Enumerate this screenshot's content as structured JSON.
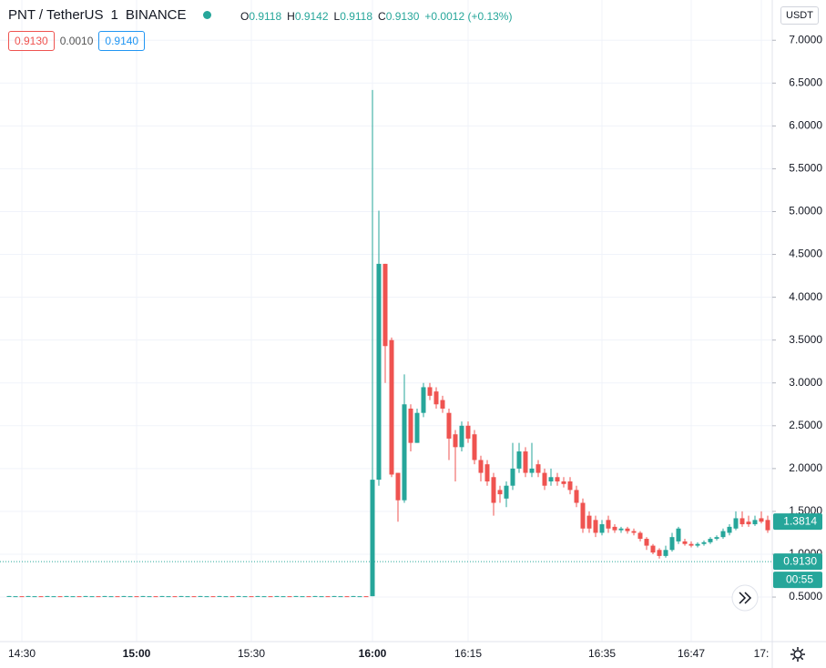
{
  "header": {
    "symbol": "PNT / TetherUS",
    "interval": "1",
    "exchange": "BINANCE",
    "ohlc": [
      {
        "key": "O",
        "text": "0.9118"
      },
      {
        "key": "H",
        "text": "0.9142"
      },
      {
        "key": "L",
        "text": "0.9118"
      },
      {
        "key": "C",
        "text": "0.9130"
      }
    ],
    "change": "+0.0012 (+0.13%)",
    "sell": "0.9130",
    "spread": "0.0010",
    "buy": "0.9140",
    "currency": "USDT"
  },
  "chart_data": {
    "type": "candlestick",
    "up_color": "#26a69a",
    "down_color": "#ef5350",
    "grid": true,
    "ylim": [
      -0.02,
      7.47
    ],
    "yticks": [
      {
        "value": 0.5,
        "label": "0.5000"
      },
      {
        "value": 1,
        "label": "1.0000"
      },
      {
        "value": 1.5,
        "label": "1.5000"
      },
      {
        "value": 2,
        "label": "2.0000"
      },
      {
        "value": 2.5,
        "label": "2.5000"
      },
      {
        "value": 3,
        "label": "3.0000"
      },
      {
        "value": 3.5,
        "label": "3.5000"
      },
      {
        "value": 4,
        "label": "4.0000"
      },
      {
        "value": 4.5,
        "label": "4.5000"
      },
      {
        "value": 5,
        "label": "5.0000"
      },
      {
        "value": 5.5,
        "label": "5.5000"
      },
      {
        "value": 6,
        "label": "6.0000"
      },
      {
        "value": 6.5,
        "label": "6.5000"
      },
      {
        "value": 7,
        "label": "7.0000"
      }
    ],
    "categories": [
      null,
      null,
      "14:30",
      null,
      null,
      null,
      null,
      null,
      null,
      null,
      null,
      null,
      null,
      null,
      null,
      null,
      null,
      null,
      null,
      null,
      "15:00",
      null,
      null,
      null,
      null,
      null,
      null,
      null,
      null,
      null,
      null,
      null,
      null,
      null,
      null,
      null,
      null,
      null,
      "15:30",
      null,
      null,
      null,
      null,
      null,
      null,
      null,
      null,
      null,
      null,
      null,
      null,
      null,
      null,
      null,
      null,
      null,
      null,
      "16:00",
      null,
      null,
      null,
      null,
      null,
      null,
      null,
      null,
      null,
      null,
      null,
      null,
      null,
      null,
      "16:15",
      null,
      null,
      null,
      null,
      null,
      null,
      null,
      null,
      null,
      null,
      null,
      null,
      null,
      null,
      null,
      null,
      null,
      null,
      null,
      null,
      "16:35",
      null,
      null,
      null,
      null,
      null,
      null,
      null,
      null,
      null,
      null,
      null,
      null,
      null,
      "16:47",
      null,
      null,
      null,
      null,
      null,
      null,
      null,
      null,
      null,
      null,
      "17:",
      null,
      null
    ],
    "open": [
      0.51,
      0.51,
      0.51,
      0.51,
      0.51,
      0.51,
      0.51,
      0.51,
      0.51,
      0.51,
      0.51,
      0.51,
      0.51,
      0.51,
      0.51,
      0.51,
      0.51,
      0.51,
      0.51,
      0.51,
      0.51,
      0.51,
      0.51,
      0.51,
      0.51,
      0.51,
      0.51,
      0.51,
      0.51,
      0.51,
      0.51,
      0.51,
      0.51,
      0.51,
      0.51,
      0.51,
      0.51,
      0.51,
      0.51,
      0.51,
      0.51,
      0.51,
      0.51,
      0.51,
      0.51,
      0.51,
      0.51,
      0.51,
      0.51,
      0.51,
      0.51,
      0.51,
      0.51,
      0.51,
      0.51,
      0.51,
      0.51,
      0.51,
      1.87,
      4.39,
      3.5,
      1.95,
      1.63,
      2.7,
      2.3,
      2.65,
      2.95,
      2.9,
      2.8,
      2.65,
      2.4,
      2.25,
      2.5,
      2.4,
      2.1,
      2.05,
      1.9,
      1.75,
      1.65,
      1.8,
      2.0,
      2.2,
      1.95,
      2.05,
      1.95,
      1.85,
      1.9,
      1.85,
      1.85,
      1.75,
      1.6,
      1.45,
      1.4,
      1.25,
      1.4,
      1.32,
      1.28,
      1.3,
      1.27,
      1.25,
      1.18,
      1.1,
      1.05,
      0.98,
      1.05,
      1.15,
      1.15,
      1.12,
      1.1,
      1.12,
      1.14,
      1.18,
      1.2,
      1.25,
      1.3,
      1.42,
      1.38,
      1.35,
      1.42,
      1.4,
      1.3
    ],
    "high": [
      0.512,
      0.51,
      0.51,
      0.512,
      0.51,
      0.51,
      0.512,
      0.51,
      0.51,
      0.512,
      0.51,
      0.51,
      0.512,
      0.51,
      0.51,
      0.512,
      0.51,
      0.51,
      0.512,
      0.51,
      0.51,
      0.512,
      0.51,
      0.51,
      0.512,
      0.51,
      0.51,
      0.512,
      0.51,
      0.51,
      0.512,
      0.51,
      0.51,
      0.512,
      0.51,
      0.51,
      0.512,
      0.51,
      0.51,
      0.512,
      0.51,
      0.51,
      0.512,
      0.51,
      0.51,
      0.512,
      0.51,
      0.51,
      0.512,
      0.51,
      0.51,
      0.512,
      0.51,
      0.51,
      0.512,
      0.51,
      0.51,
      6.42,
      5.01,
      4.39,
      3.53,
      1.95,
      3.1,
      2.75,
      2.7,
      3.0,
      3.0,
      2.95,
      2.85,
      2.7,
      2.45,
      2.55,
      2.55,
      2.45,
      2.15,
      2.1,
      1.95,
      1.8,
      1.85,
      2.3,
      2.3,
      2.25,
      2.3,
      2.1,
      2.0,
      2.0,
      1.95,
      1.9,
      1.9,
      1.8,
      1.65,
      1.5,
      1.45,
      1.4,
      1.45,
      1.35,
      1.32,
      1.32,
      1.3,
      1.27,
      1.2,
      1.12,
      1.07,
      1.1,
      1.25,
      1.32,
      1.18,
      1.15,
      1.14,
      1.16,
      1.2,
      1.22,
      1.3,
      1.35,
      1.5,
      1.5,
      1.45,
      1.45,
      1.5,
      1.45,
      1.4
    ],
    "low": [
      0.51,
      0.51,
      0.508,
      0.51,
      0.51,
      0.508,
      0.51,
      0.51,
      0.508,
      0.51,
      0.51,
      0.508,
      0.51,
      0.51,
      0.508,
      0.51,
      0.51,
      0.508,
      0.51,
      0.51,
      0.508,
      0.51,
      0.51,
      0.508,
      0.51,
      0.51,
      0.508,
      0.51,
      0.51,
      0.508,
      0.51,
      0.51,
      0.508,
      0.51,
      0.51,
      0.508,
      0.51,
      0.51,
      0.508,
      0.51,
      0.51,
      0.508,
      0.51,
      0.51,
      0.508,
      0.51,
      0.51,
      0.508,
      0.51,
      0.51,
      0.508,
      0.51,
      0.51,
      0.508,
      0.51,
      0.51,
      0.508,
      0.51,
      1.8,
      3.0,
      1.9,
      1.38,
      1.6,
      2.2,
      2.3,
      2.6,
      2.8,
      2.7,
      2.65,
      2.1,
      1.85,
      2.2,
      2.3,
      2.05,
      1.85,
      1.8,
      1.45,
      1.6,
      1.55,
      1.75,
      1.95,
      1.9,
      1.9,
      1.9,
      1.75,
      1.8,
      1.8,
      1.78,
      1.7,
      1.55,
      1.25,
      1.25,
      1.2,
      1.22,
      1.25,
      1.25,
      1.25,
      1.24,
      1.22,
      1.15,
      1.05,
      1.0,
      0.95,
      0.96,
      1.03,
      1.12,
      1.1,
      1.08,
      1.08,
      1.1,
      1.12,
      1.16,
      1.18,
      1.22,
      1.28,
      1.32,
      1.32,
      1.33,
      1.36,
      1.25,
      1.28
    ],
    "close": [
      0.512,
      0.51,
      0.508,
      0.512,
      0.51,
      0.508,
      0.512,
      0.51,
      0.508,
      0.512,
      0.51,
      0.508,
      0.512,
      0.51,
      0.508,
      0.512,
      0.51,
      0.508,
      0.512,
      0.51,
      0.508,
      0.512,
      0.51,
      0.508,
      0.512,
      0.51,
      0.508,
      0.512,
      0.51,
      0.508,
      0.512,
      0.51,
      0.508,
      0.512,
      0.51,
      0.508,
      0.512,
      0.51,
      0.508,
      0.512,
      0.51,
      0.508,
      0.512,
      0.51,
      0.508,
      0.512,
      0.51,
      0.508,
      0.512,
      0.51,
      0.508,
      0.512,
      0.51,
      0.508,
      0.512,
      0.51,
      0.508,
      1.87,
      4.39,
      3.43,
      1.93,
      1.63,
      2.75,
      2.3,
      2.65,
      2.95,
      2.85,
      2.75,
      2.7,
      2.35,
      2.25,
      2.5,
      2.35,
      2.1,
      1.95,
      1.85,
      1.6,
      1.7,
      1.8,
      2.0,
      2.2,
      1.95,
      2.0,
      1.95,
      1.8,
      1.9,
      1.85,
      1.82,
      1.75,
      1.6,
      1.3,
      1.3,
      1.25,
      1.35,
      1.3,
      1.28,
      1.3,
      1.27,
      1.25,
      1.18,
      1.1,
      1.02,
      0.98,
      1.05,
      1.2,
      1.3,
      1.12,
      1.1,
      1.12,
      1.14,
      1.18,
      1.2,
      1.27,
      1.32,
      1.42,
      1.35,
      1.35,
      1.4,
      1.38,
      1.28,
      1.38
    ],
    "price_labels": [
      {
        "value": 1.3814,
        "label": "1.3814"
      },
      {
        "value": 0.913,
        "label": "0.9130"
      }
    ],
    "countdown": "00:55"
  }
}
